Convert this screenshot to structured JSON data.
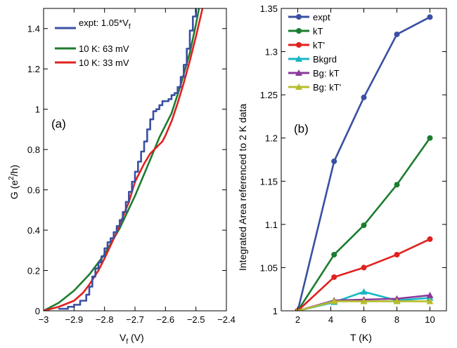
{
  "chart_data": [
    {
      "type": "line",
      "panel_label": "(a)",
      "xlabel_main": "V",
      "xlabel_sub": "f",
      "xlabel_tail": " (V)",
      "ylabel_main": "G (e",
      "ylabel_sup": "2",
      "ylabel_tail": "/h)",
      "xlim": [
        -3.0,
        -2.4
      ],
      "ylim": [
        0,
        1.5
      ],
      "xticks": [
        -3,
        -2.9,
        -2.8,
        -2.7,
        -2.6,
        -2.5,
        -2.4
      ],
      "xtick_labels": [
        "−3",
        "−2.9",
        "−2.8",
        "−2.7",
        "−2.6",
        "−2.5",
        "−2.4"
      ],
      "yticks": [
        0,
        0.2,
        0.4,
        0.6,
        0.8,
        1.0,
        1.2,
        1.4
      ],
      "ytick_labels": [
        "0",
        "0.2",
        "0.4",
        "0.6",
        "0.8",
        "1",
        "1.2",
        "1.4"
      ],
      "grid": false,
      "legend_position": "top-left",
      "series": [
        {
          "name": "expt: 1.05*V",
          "name_sub": "f",
          "color": "#3a4fa3",
          "style": "step",
          "x": [
            -2.95,
            -2.92,
            -2.9,
            -2.88,
            -2.86,
            -2.85,
            -2.84,
            -2.83,
            -2.82,
            -2.81,
            -2.8,
            -2.79,
            -2.78,
            -2.77,
            -2.76,
            -2.75,
            -2.74,
            -2.73,
            -2.72,
            -2.71,
            -2.7,
            -2.69,
            -2.68,
            -2.67,
            -2.66,
            -2.65,
            -2.64,
            -2.63,
            -2.62,
            -2.61,
            -2.6,
            -2.59,
            -2.58,
            -2.57,
            -2.56,
            -2.55,
            -2.54,
            -2.53,
            -2.52,
            -2.51,
            -2.5,
            -2.49
          ],
          "y": [
            0.01,
            0.02,
            0.03,
            0.05,
            0.08,
            0.12,
            0.17,
            0.21,
            0.24,
            0.27,
            0.31,
            0.34,
            0.36,
            0.39,
            0.42,
            0.45,
            0.49,
            0.54,
            0.59,
            0.64,
            0.69,
            0.74,
            0.79,
            0.84,
            0.9,
            0.95,
            0.99,
            1.0,
            1.02,
            1.04,
            1.04,
            1.05,
            1.07,
            1.08,
            1.11,
            1.16,
            1.22,
            1.3,
            1.39,
            1.46,
            1.52,
            1.58
          ]
        },
        {
          "name": "10 K: 63 mV",
          "color": "#1b7d30",
          "style": "line",
          "x": [
            -3.0,
            -2.95,
            -2.9,
            -2.85,
            -2.8,
            -2.75,
            -2.7,
            -2.65,
            -2.62,
            -2.6,
            -2.58,
            -2.55,
            -2.52,
            -2.5,
            -2.48
          ],
          "y": [
            0.0,
            0.04,
            0.1,
            0.18,
            0.28,
            0.41,
            0.57,
            0.75,
            0.86,
            0.92,
            0.98,
            1.12,
            1.28,
            1.42,
            1.58
          ]
        },
        {
          "name": "10 K: 33 mV",
          "color": "#e0211f",
          "style": "line",
          "x": [
            -3.0,
            -2.95,
            -2.9,
            -2.87,
            -2.85,
            -2.82,
            -2.8,
            -2.76,
            -2.72,
            -2.7,
            -2.67,
            -2.65,
            -2.63,
            -2.61,
            -2.6,
            -2.58,
            -2.56,
            -2.54,
            -2.52,
            -2.5,
            -2.48,
            -2.47
          ],
          "y": [
            0.0,
            0.02,
            0.05,
            0.09,
            0.13,
            0.2,
            0.26,
            0.39,
            0.54,
            0.64,
            0.73,
            0.78,
            0.81,
            0.84,
            0.87,
            0.94,
            1.03,
            1.13,
            1.24,
            1.36,
            1.49,
            1.56
          ]
        }
      ]
    },
    {
      "type": "line",
      "panel_label": "(b)",
      "xlabel": "T (K)",
      "ylabel": "Integrated Area referenced to 2 K data",
      "xlim": [
        1,
        11
      ],
      "ylim": [
        1.0,
        1.35
      ],
      "xticks": [
        2,
        4,
        6,
        8,
        10
      ],
      "xtick_labels": [
        "2",
        "4",
        "6",
        "8",
        "10"
      ],
      "yticks": [
        1.0,
        1.05,
        1.1,
        1.15,
        1.2,
        1.25,
        1.3,
        1.35
      ],
      "ytick_labels": [
        "1",
        "1.05",
        "1.1",
        "1.15",
        "1.2",
        "1.25",
        "1.3",
        "1.35"
      ],
      "grid": false,
      "legend_position": "top-left",
      "series": [
        {
          "name": "expt",
          "color": "#3a4fa3",
          "marker": "circle",
          "x": [
            2,
            4.2,
            6,
            8,
            10
          ],
          "y": [
            1.0,
            1.173,
            1.247,
            1.32,
            1.34
          ]
        },
        {
          "name": "kT",
          "color": "#1b7d30",
          "marker": "circle",
          "x": [
            2,
            4.2,
            6,
            8,
            10
          ],
          "y": [
            1.0,
            1.065,
            1.099,
            1.146,
            1.2
          ]
        },
        {
          "name": "kT'",
          "color": "#e0211f",
          "marker": "circle",
          "x": [
            2,
            4.2,
            6,
            8,
            10
          ],
          "y": [
            1.0,
            1.039,
            1.05,
            1.065,
            1.083
          ]
        },
        {
          "name": "Bkgrd",
          "color": "#19b6c4",
          "marker": "triangle",
          "x": [
            2,
            4.2,
            6,
            8,
            10
          ],
          "y": [
            1.0,
            1.01,
            1.022,
            1.012,
            1.015
          ]
        },
        {
          "name": "Bg: kT",
          "color": "#8a3a9b",
          "marker": "triangle",
          "x": [
            2,
            4.2,
            6,
            8,
            10
          ],
          "y": [
            1.0,
            1.012,
            1.013,
            1.014,
            1.018
          ]
        },
        {
          "name": "Bg: kT'",
          "color": "#b6bd2c",
          "marker": "triangle",
          "x": [
            2,
            4.2,
            6,
            8,
            10
          ],
          "y": [
            1.0,
            1.011,
            1.011,
            1.011,
            1.011
          ]
        }
      ]
    }
  ]
}
